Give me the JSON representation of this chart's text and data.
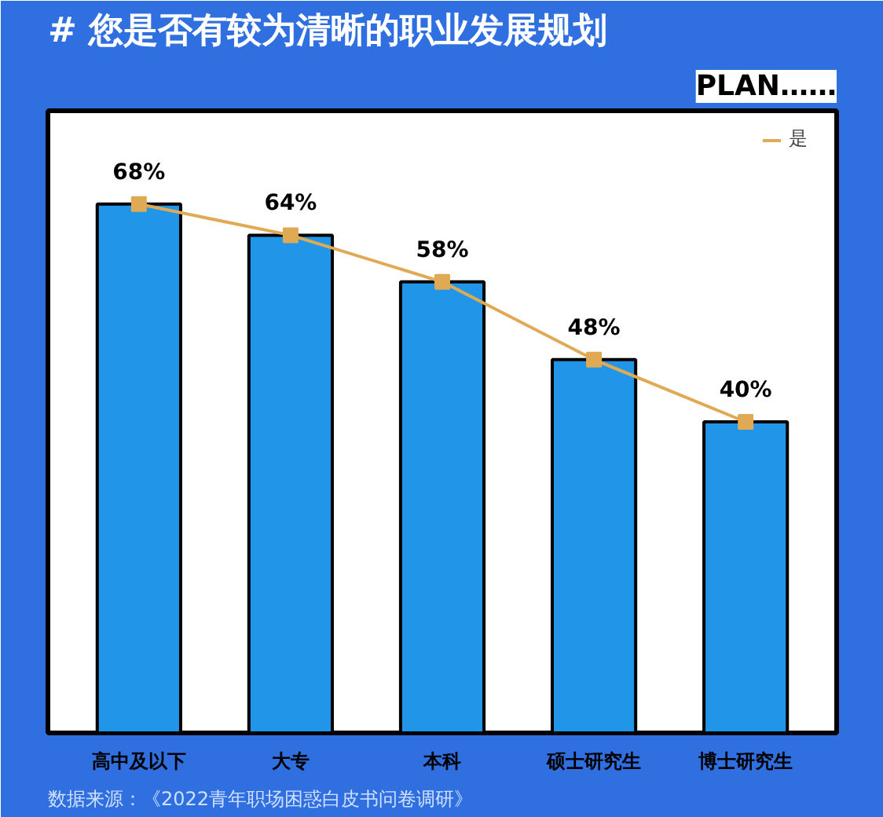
{
  "chart_data": {
    "type": "bar",
    "title": "# 您是否有较为清晰的职业发展规划",
    "subtitle": "PLAN……",
    "categories": [
      "高中及以下",
      "大专",
      "本科",
      "硕士研究生",
      "博士研究生"
    ],
    "series": [
      {
        "color": "#2196e8",
        "values": [
          68,
          64,
          58,
          48,
          40
        ]
      },
      {
        "type": "line",
        "name": "是",
        "color": "#e0aa55",
        "marker": "square",
        "values": [
          68,
          64,
          58,
          48,
          40
        ],
        "value_labels": [
          "68%",
          "64%",
          "58%",
          "48%",
          "40%"
        ]
      }
    ],
    "ylim": [
      0,
      80
    ],
    "tick_labels": "x",
    "grid": false,
    "legend": "top right",
    "annotations": [
      "数据来源：《2022青年职场困惑白皮书问卷调研》"
    ]
  }
}
